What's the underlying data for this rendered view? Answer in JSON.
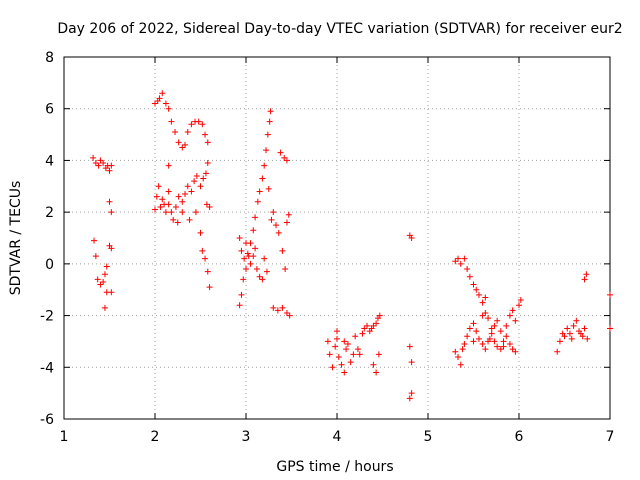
{
  "chart_data": {
    "type": "scatter",
    "title": "Day 206 of 2022, Sidereal Day-to-day VTEC variation (SDTVAR) for receiver eur2",
    "xlabel": "GPS time / hours",
    "ylabel": "SDTVAR / TECUs",
    "xlim": [
      1,
      7
    ],
    "ylim": [
      -6,
      8
    ],
    "xticks": [
      1,
      2,
      3,
      4,
      5,
      6,
      7
    ],
    "yticks": [
      -6,
      -4,
      -2,
      0,
      2,
      4,
      6,
      8
    ],
    "grid": true,
    "marker": "+",
    "color": "#ff0000",
    "series": [
      {
        "name": "SDTVAR",
        "points": [
          [
            1.33,
            0.9
          ],
          [
            1.35,
            0.3
          ],
          [
            1.37,
            -0.6
          ],
          [
            1.4,
            -0.8
          ],
          [
            1.43,
            -0.7
          ],
          [
            1.45,
            -0.4
          ],
          [
            1.47,
            -0.1
          ],
          [
            1.5,
            0.7
          ],
          [
            1.52,
            0.6
          ],
          [
            1.47,
            -1.1
          ],
          [
            1.52,
            -1.1
          ],
          [
            1.45,
            -1.7
          ],
          [
            1.32,
            4.1
          ],
          [
            1.35,
            3.9
          ],
          [
            1.38,
            3.8
          ],
          [
            1.4,
            4.0
          ],
          [
            1.43,
            3.9
          ],
          [
            1.46,
            3.7
          ],
          [
            1.48,
            3.8
          ],
          [
            1.5,
            3.6
          ],
          [
            1.52,
            3.8
          ],
          [
            1.5,
            2.4
          ],
          [
            1.52,
            2.0
          ],
          [
            2.0,
            6.2
          ],
          [
            2.03,
            6.3
          ],
          [
            2.05,
            6.4
          ],
          [
            2.08,
            6.6
          ],
          [
            2.12,
            6.2
          ],
          [
            2.15,
            6.0
          ],
          [
            2.18,
            5.5
          ],
          [
            2.22,
            5.1
          ],
          [
            2.26,
            4.7
          ],
          [
            2.3,
            4.5
          ],
          [
            2.33,
            4.6
          ],
          [
            2.36,
            5.1
          ],
          [
            2.4,
            5.4
          ],
          [
            2.44,
            5.5
          ],
          [
            2.48,
            5.5
          ],
          [
            2.52,
            5.4
          ],
          [
            2.55,
            5.0
          ],
          [
            2.58,
            4.7
          ],
          [
            2.0,
            2.1
          ],
          [
            2.02,
            2.6
          ],
          [
            2.04,
            3.0
          ],
          [
            2.06,
            2.2
          ],
          [
            2.08,
            2.5
          ],
          [
            2.1,
            2.3
          ],
          [
            2.12,
            2.0
          ],
          [
            2.15,
            2.3
          ],
          [
            2.18,
            2.0
          ],
          [
            2.2,
            1.7
          ],
          [
            2.23,
            2.2
          ],
          [
            2.26,
            2.6
          ],
          [
            2.3,
            2.4
          ],
          [
            2.33,
            2.7
          ],
          [
            2.36,
            3.0
          ],
          [
            2.4,
            2.8
          ],
          [
            2.43,
            3.2
          ],
          [
            2.46,
            3.4
          ],
          [
            2.5,
            3.0
          ],
          [
            2.53,
            3.3
          ],
          [
            2.56,
            3.5
          ],
          [
            2.58,
            3.9
          ],
          [
            2.45,
            2.0
          ],
          [
            2.5,
            1.2
          ],
          [
            2.52,
            0.5
          ],
          [
            2.55,
            0.2
          ],
          [
            2.58,
            -0.3
          ],
          [
            2.6,
            -0.9
          ],
          [
            2.57,
            2.3
          ],
          [
            2.6,
            2.2
          ],
          [
            2.15,
            2.8
          ],
          [
            2.25,
            1.6
          ],
          [
            2.3,
            2.0
          ],
          [
            2.38,
            1.7
          ],
          [
            2.15,
            3.8
          ],
          [
            2.93,
            -1.6
          ],
          [
            2.95,
            -1.2
          ],
          [
            2.97,
            -0.6
          ],
          [
            3.0,
            -0.2
          ],
          [
            3.03,
            0.3
          ],
          [
            3.05,
            0.8
          ],
          [
            3.08,
            1.3
          ],
          [
            3.1,
            1.8
          ],
          [
            3.13,
            2.4
          ],
          [
            3.15,
            2.8
          ],
          [
            3.18,
            3.3
          ],
          [
            3.2,
            3.8
          ],
          [
            3.22,
            4.4
          ],
          [
            3.24,
            5.0
          ],
          [
            3.26,
            5.5
          ],
          [
            3.27,
            5.9
          ],
          [
            2.93,
            1.0
          ],
          [
            2.95,
            0.5
          ],
          [
            2.98,
            0.2
          ],
          [
            3.0,
            0.8
          ],
          [
            3.02,
            0.4
          ],
          [
            3.05,
            0.0
          ],
          [
            3.08,
            0.3
          ],
          [
            3.1,
            0.6
          ],
          [
            3.12,
            -0.2
          ],
          [
            3.15,
            -0.5
          ],
          [
            3.18,
            -0.6
          ],
          [
            3.2,
            0.2
          ],
          [
            3.23,
            -0.3
          ],
          [
            3.28,
            1.7
          ],
          [
            3.3,
            2.0
          ],
          [
            3.33,
            1.5
          ],
          [
            3.36,
            1.2
          ],
          [
            3.4,
            0.5
          ],
          [
            3.43,
            -0.2
          ],
          [
            3.45,
            1.6
          ],
          [
            3.47,
            1.9
          ],
          [
            3.38,
            4.3
          ],
          [
            3.42,
            4.1
          ],
          [
            3.45,
            4.0
          ],
          [
            3.3,
            -1.7
          ],
          [
            3.35,
            -1.8
          ],
          [
            3.4,
            -1.7
          ],
          [
            3.45,
            -1.9
          ],
          [
            3.48,
            -2.0
          ],
          [
            3.25,
            2.9
          ],
          [
            3.9,
            -3.0
          ],
          [
            3.92,
            -3.5
          ],
          [
            3.95,
            -4.0
          ],
          [
            3.98,
            -3.2
          ],
          [
            4.0,
            -2.9
          ],
          [
            4.02,
            -3.6
          ],
          [
            4.05,
            -3.9
          ],
          [
            4.08,
            -4.2
          ],
          [
            4.1,
            -3.3
          ],
          [
            4.12,
            -3.1
          ],
          [
            4.15,
            -3.8
          ],
          [
            4.18,
            -3.5
          ],
          [
            4.2,
            -2.8
          ],
          [
            4.23,
            -3.3
          ],
          [
            4.25,
            -3.5
          ],
          [
            4.28,
            -2.7
          ],
          [
            4.3,
            -2.5
          ],
          [
            4.33,
            -2.4
          ],
          [
            4.36,
            -2.6
          ],
          [
            4.38,
            -2.5
          ],
          [
            4.4,
            -2.4
          ],
          [
            4.43,
            -2.3
          ],
          [
            4.45,
            -2.1
          ],
          [
            4.47,
            -2.0
          ],
          [
            4.4,
            -3.9
          ],
          [
            4.43,
            -4.2
          ],
          [
            4.46,
            -3.5
          ],
          [
            4.08,
            -3.0
          ],
          [
            4.0,
            -2.6
          ],
          [
            4.8,
            1.1
          ],
          [
            4.82,
            1.0
          ],
          [
            4.8,
            -3.2
          ],
          [
            4.82,
            -3.8
          ],
          [
            4.8,
            -5.2
          ],
          [
            4.82,
            -5.0
          ],
          [
            5.3,
            -3.4
          ],
          [
            5.33,
            -3.6
          ],
          [
            5.36,
            -3.9
          ],
          [
            5.38,
            -3.3
          ],
          [
            5.4,
            -3.1
          ],
          [
            5.43,
            -2.8
          ],
          [
            5.46,
            -2.5
          ],
          [
            5.5,
            -2.3
          ],
          [
            5.53,
            -2.6
          ],
          [
            5.56,
            -2.9
          ],
          [
            5.6,
            -3.1
          ],
          [
            5.63,
            -3.3
          ],
          [
            5.66,
            -3.0
          ],
          [
            5.7,
            -2.7
          ],
          [
            5.73,
            -2.4
          ],
          [
            5.76,
            -2.2
          ],
          [
            5.8,
            -2.6
          ],
          [
            5.83,
            -3.0
          ],
          [
            5.86,
            -2.4
          ],
          [
            5.9,
            -2.0
          ],
          [
            5.93,
            -1.8
          ],
          [
            5.96,
            -2.2
          ],
          [
            6.0,
            -1.6
          ],
          [
            6.02,
            -1.4
          ],
          [
            5.3,
            0.1
          ],
          [
            5.33,
            0.2
          ],
          [
            5.36,
            0.0
          ],
          [
            5.4,
            0.2
          ],
          [
            5.43,
            -0.2
          ],
          [
            5.46,
            -0.5
          ],
          [
            5.5,
            -0.8
          ],
          [
            5.53,
            -1.0
          ],
          [
            5.56,
            -1.2
          ],
          [
            5.6,
            -1.5
          ],
          [
            5.63,
            -1.9
          ],
          [
            5.66,
            -2.1
          ],
          [
            5.7,
            -2.5
          ],
          [
            5.73,
            -3.0
          ],
          [
            5.76,
            -3.2
          ],
          [
            5.8,
            -3.3
          ],
          [
            5.83,
            -3.2
          ],
          [
            5.86,
            -2.8
          ],
          [
            5.9,
            -3.1
          ],
          [
            5.93,
            -3.3
          ],
          [
            5.96,
            -3.4
          ],
          [
            5.63,
            -1.3
          ],
          [
            5.6,
            -2.0
          ],
          [
            5.68,
            -2.9
          ],
          [
            5.5,
            -3.0
          ],
          [
            6.42,
            -3.4
          ],
          [
            6.45,
            -3.0
          ],
          [
            6.48,
            -2.7
          ],
          [
            6.5,
            -2.8
          ],
          [
            6.53,
            -2.5
          ],
          [
            6.56,
            -2.7
          ],
          [
            6.6,
            -2.4
          ],
          [
            6.63,
            -2.2
          ],
          [
            6.66,
            -2.6
          ],
          [
            6.7,
            -2.8
          ],
          [
            6.72,
            -2.5
          ],
          [
            6.75,
            -2.9
          ],
          [
            6.68,
            -2.7
          ],
          [
            6.58,
            -2.9
          ],
          [
            6.72,
            -0.6
          ],
          [
            6.74,
            -0.4
          ],
          [
            7.0,
            -1.2
          ],
          [
            7.0,
            -2.5
          ]
        ]
      }
    ]
  }
}
